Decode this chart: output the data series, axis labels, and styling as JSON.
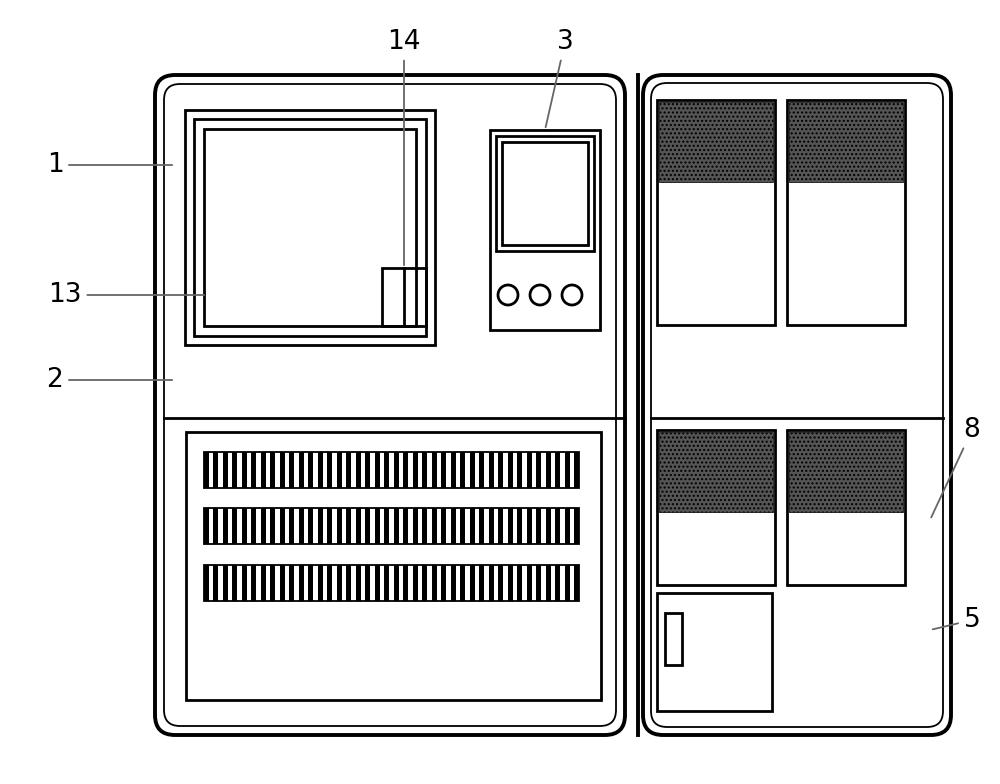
{
  "bg_color": "#ffffff",
  "line_color": "#000000",
  "lw_thick": 2.8,
  "lw_mid": 2.0,
  "lw_thin": 1.3,
  "fig_width": 10.0,
  "fig_height": 7.84,
  "label_fontsize": 19
}
